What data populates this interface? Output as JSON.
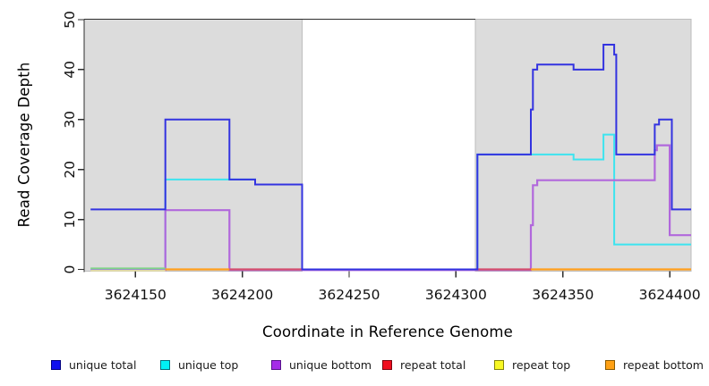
{
  "chart_data": {
    "type": "line",
    "subtype": "step-coverage",
    "title": "",
    "xlabel": "Coordinate in Reference Genome",
    "ylabel": "Read Coverage Depth",
    "xlim": [
      3624126,
      3624410
    ],
    "ylim": [
      0,
      50
    ],
    "x_ticks": [
      3624150,
      3624200,
      3624250,
      3624300,
      3624350,
      3624400
    ],
    "y_ticks": [
      0,
      10,
      20,
      30,
      40,
      50
    ],
    "grid": false,
    "plot_background": "#ffffff",
    "shaded_region_color": "#DCDCDC",
    "shaded_region_border": "#BDBDBD",
    "axis_color": "#2E2E2E",
    "tick_label_color": "#111111",
    "shaded_regions": [
      {
        "x0": 3624126,
        "x1": 3624228
      },
      {
        "x0": 3624309,
        "x1": 3624410
      }
    ],
    "series": [
      {
        "name": "unique total",
        "color": "#3333E0",
        "width": 2,
        "steps": [
          [
            3624129,
            12
          ],
          [
            3624164,
            30
          ],
          [
            3624194,
            18
          ],
          [
            3624206,
            17
          ],
          [
            3624228,
            0
          ],
          [
            3624310,
            23
          ],
          [
            3624335,
            32
          ],
          [
            3624336,
            40
          ],
          [
            3624338,
            41
          ],
          [
            3624355,
            40
          ],
          [
            3624369,
            45
          ],
          [
            3624374,
            43
          ],
          [
            3624375,
            23
          ],
          [
            3624393,
            29
          ],
          [
            3624395,
            30
          ],
          [
            3624401,
            12
          ]
        ],
        "x_end": 3624410
      },
      {
        "name": "unique top",
        "color": "#3DE4EF",
        "width": 2,
        "steps": [
          [
            3624129,
            0
          ],
          [
            3624164,
            18
          ],
          [
            3624206,
            17
          ],
          [
            3624228,
            0
          ],
          [
            3624310,
            23
          ],
          [
            3624355,
            22
          ],
          [
            3624369,
            27
          ],
          [
            3624374,
            5
          ]
        ],
        "x_end": 3624410
      },
      {
        "name": "unique bottom",
        "color": "#B168DC",
        "width": 2.2,
        "y_offset": 0.8,
        "steps": [
          [
            3624129,
            0
          ],
          [
            3624164,
            12
          ],
          [
            3624194,
            0
          ],
          [
            3624335,
            9
          ],
          [
            3624336,
            17
          ],
          [
            3624338,
            18
          ],
          [
            3624393,
            24
          ],
          [
            3624394,
            25
          ],
          [
            3624400,
            7
          ]
        ],
        "x_end": 3624410
      },
      {
        "name": "repeat total",
        "color": "#D44E6E",
        "width": 2.2,
        "value": 0,
        "segments": [
          [
            3624194,
            3624228
          ],
          [
            3624309,
            3624335
          ]
        ]
      },
      {
        "name": "repeat top",
        "color": "#7FD487",
        "width": 1.8,
        "value": 0,
        "y_offset": -1.2,
        "underlay_color": "#E3DBA6",
        "segments": [
          [
            3624129,
            3624164
          ]
        ],
        "note": "rendered green where overlapped by unique top line"
      },
      {
        "name": "repeat bottom",
        "color": "#FF9E1C",
        "width": 2.2,
        "value": 0,
        "segments": [
          [
            3624164,
            3624194
          ],
          [
            3624335,
            3624410
          ]
        ]
      }
    ],
    "draw_order": [
      "unique top",
      "unique bottom",
      "repeat top",
      "repeat bottom",
      "repeat total",
      "unique total"
    ],
    "legend_position": "bottom",
    "legend": [
      {
        "label": "unique total",
        "fill": "#1010EE",
        "border": "#000080"
      },
      {
        "label": "unique top",
        "fill": "#00F0F5",
        "border": "#00707E"
      },
      {
        "label": "unique bottom",
        "fill": "#A52BE8",
        "border": "#56128A"
      },
      {
        "label": "repeat total",
        "fill": "#F00D1E",
        "border": "#7A0510"
      },
      {
        "label": "repeat top",
        "fill": "#F8F823",
        "border": "#85850A"
      },
      {
        "label": "repeat bottom",
        "fill": "#FFA115",
        "border": "#8A5A00"
      }
    ]
  }
}
